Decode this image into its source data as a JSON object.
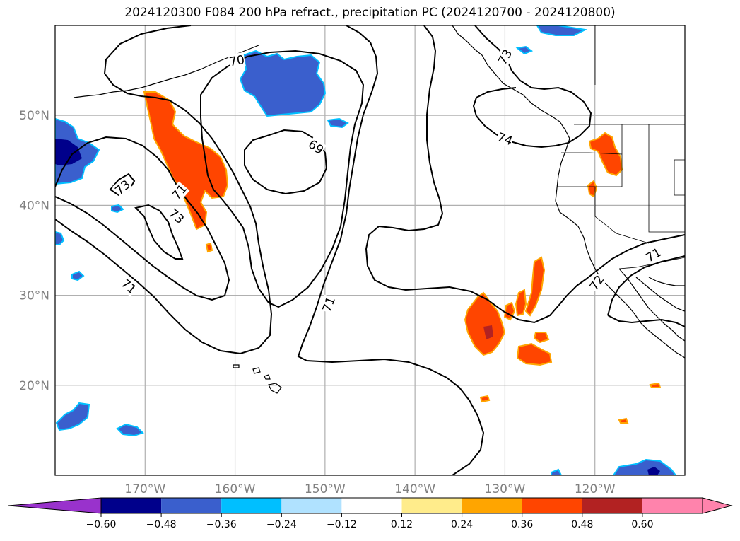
{
  "title": "2024120300 F084 200 hPa refract., precipitation PC (2024120700 - 2024120800)",
  "map": {
    "lon_range": [
      -180,
      -110
    ],
    "lat_range": [
      10,
      60
    ],
    "lat_ticks": [
      {
        "value": 20,
        "label": "20°N"
      },
      {
        "value": 30,
        "label": "30°N"
      },
      {
        "value": 40,
        "label": "40°N"
      },
      {
        "value": 50,
        "label": "50°N"
      }
    ],
    "lon_ticks": [
      {
        "value": -170,
        "label": "170°W"
      },
      {
        "value": -160,
        "label": "160°W"
      },
      {
        "value": -150,
        "label": "150°W"
      },
      {
        "value": -140,
        "label": "140°W"
      },
      {
        "value": -130,
        "label": "130°W"
      },
      {
        "value": -120,
        "label": "120°W"
      }
    ],
    "grid": true,
    "contour_labels": [
      {
        "text": "70",
        "lon": -159.8,
        "lat": 56.1,
        "rot": -10
      },
      {
        "text": "69",
        "lon": -151.0,
        "lat": 46.5,
        "rot": 35
      },
      {
        "text": "73",
        "lon": -166.5,
        "lat": 38.8,
        "rot": 40
      },
      {
        "text": "73",
        "lon": -172.5,
        "lat": 42.0,
        "rot": -40
      },
      {
        "text": "71",
        "lon": -171.8,
        "lat": 31.0,
        "rot": 40
      },
      {
        "text": "71",
        "lon": -149.6,
        "lat": 29.0,
        "rot": -70
      },
      {
        "text": "74",
        "lon": -130.0,
        "lat": 47.4,
        "rot": 20
      },
      {
        "text": "72",
        "lon": -119.8,
        "lat": 31.4,
        "rot": -55
      },
      {
        "text": "71",
        "lon": -113.5,
        "lat": 34.5,
        "rot": -30
      },
      {
        "text": "71",
        "lon": -166.2,
        "lat": 41.5,
        "rot": -50
      },
      {
        "text": "73",
        "lon": -130.0,
        "lat": 56.5,
        "rot": -60
      }
    ]
  },
  "colorbar": {
    "colors": [
      "#9932cc",
      "#00008b",
      "#3a5fcd",
      "#00bfff",
      "#b0e2ff",
      "#ffffff",
      "#ffec8b",
      "#ffa500",
      "#ff4500",
      "#b22222",
      "#ff83ac",
      "#ff83ac"
    ],
    "tick_labels": [
      "−0.60",
      "−0.48",
      "−0.36",
      "−0.24",
      "−0.12",
      "0.12",
      "0.24",
      "0.36",
      "0.48",
      "0.60"
    ]
  },
  "colors": {
    "negative_fill": "#3a5fcd",
    "strong_negative_fill": "#00008b",
    "light_negative_fill": "#00bfff",
    "positive_fill": "#ff4500",
    "positive_edge": "#ffa500",
    "positive_halo": "#ffec8b",
    "strong_positive_fill": "#b22222"
  }
}
